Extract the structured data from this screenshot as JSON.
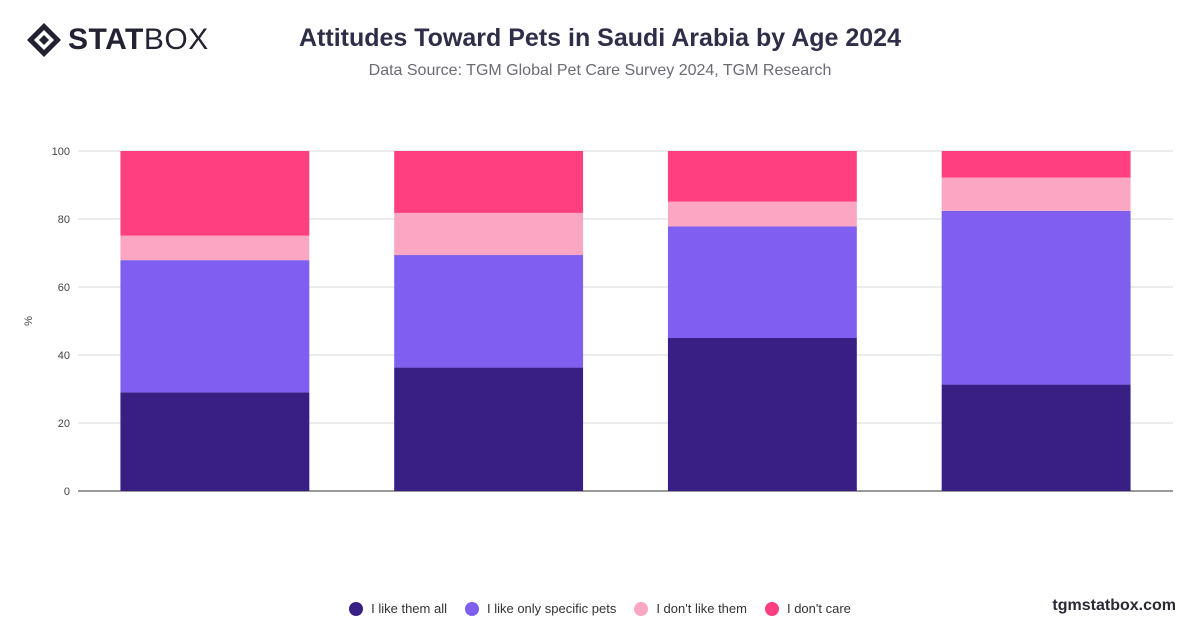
{
  "header": {
    "logo_bold": "STAT",
    "logo_light": "BOX",
    "title": "Attitudes Toward Pets in Saudi Arabia by Age 2024",
    "subtitle": "Data Source: TGM Global Pet Care Survey 2024, TGM Research"
  },
  "footer": {
    "website": "tgmstatbox.com"
  },
  "chart_data": {
    "type": "bar",
    "stacked": true,
    "categories": [
      "",
      "",
      "",
      ""
    ],
    "ylabel": "%",
    "xlabel": "",
    "ylim": [
      0,
      100
    ],
    "yticks": [
      0,
      20,
      40,
      60,
      80,
      100
    ],
    "grid": true,
    "legend_position": "bottom",
    "series": [
      {
        "name": "I like them all",
        "color": "#371f84",
        "values": [
          29,
          36.3,
          45,
          31.3
        ]
      },
      {
        "name": "I like only specific pets",
        "color": "#7e5fef",
        "values": [
          38.9,
          33.1,
          32.8,
          51.1
        ]
      },
      {
        "name": "I don't like them",
        "color": "#fba6c3",
        "values": [
          7.2,
          12.4,
          7.3,
          9.8
        ]
      },
      {
        "name": "I don't care",
        "color": "#ff3f80",
        "values": [
          24.9,
          18.2,
          14.9,
          7.8
        ]
      }
    ]
  }
}
